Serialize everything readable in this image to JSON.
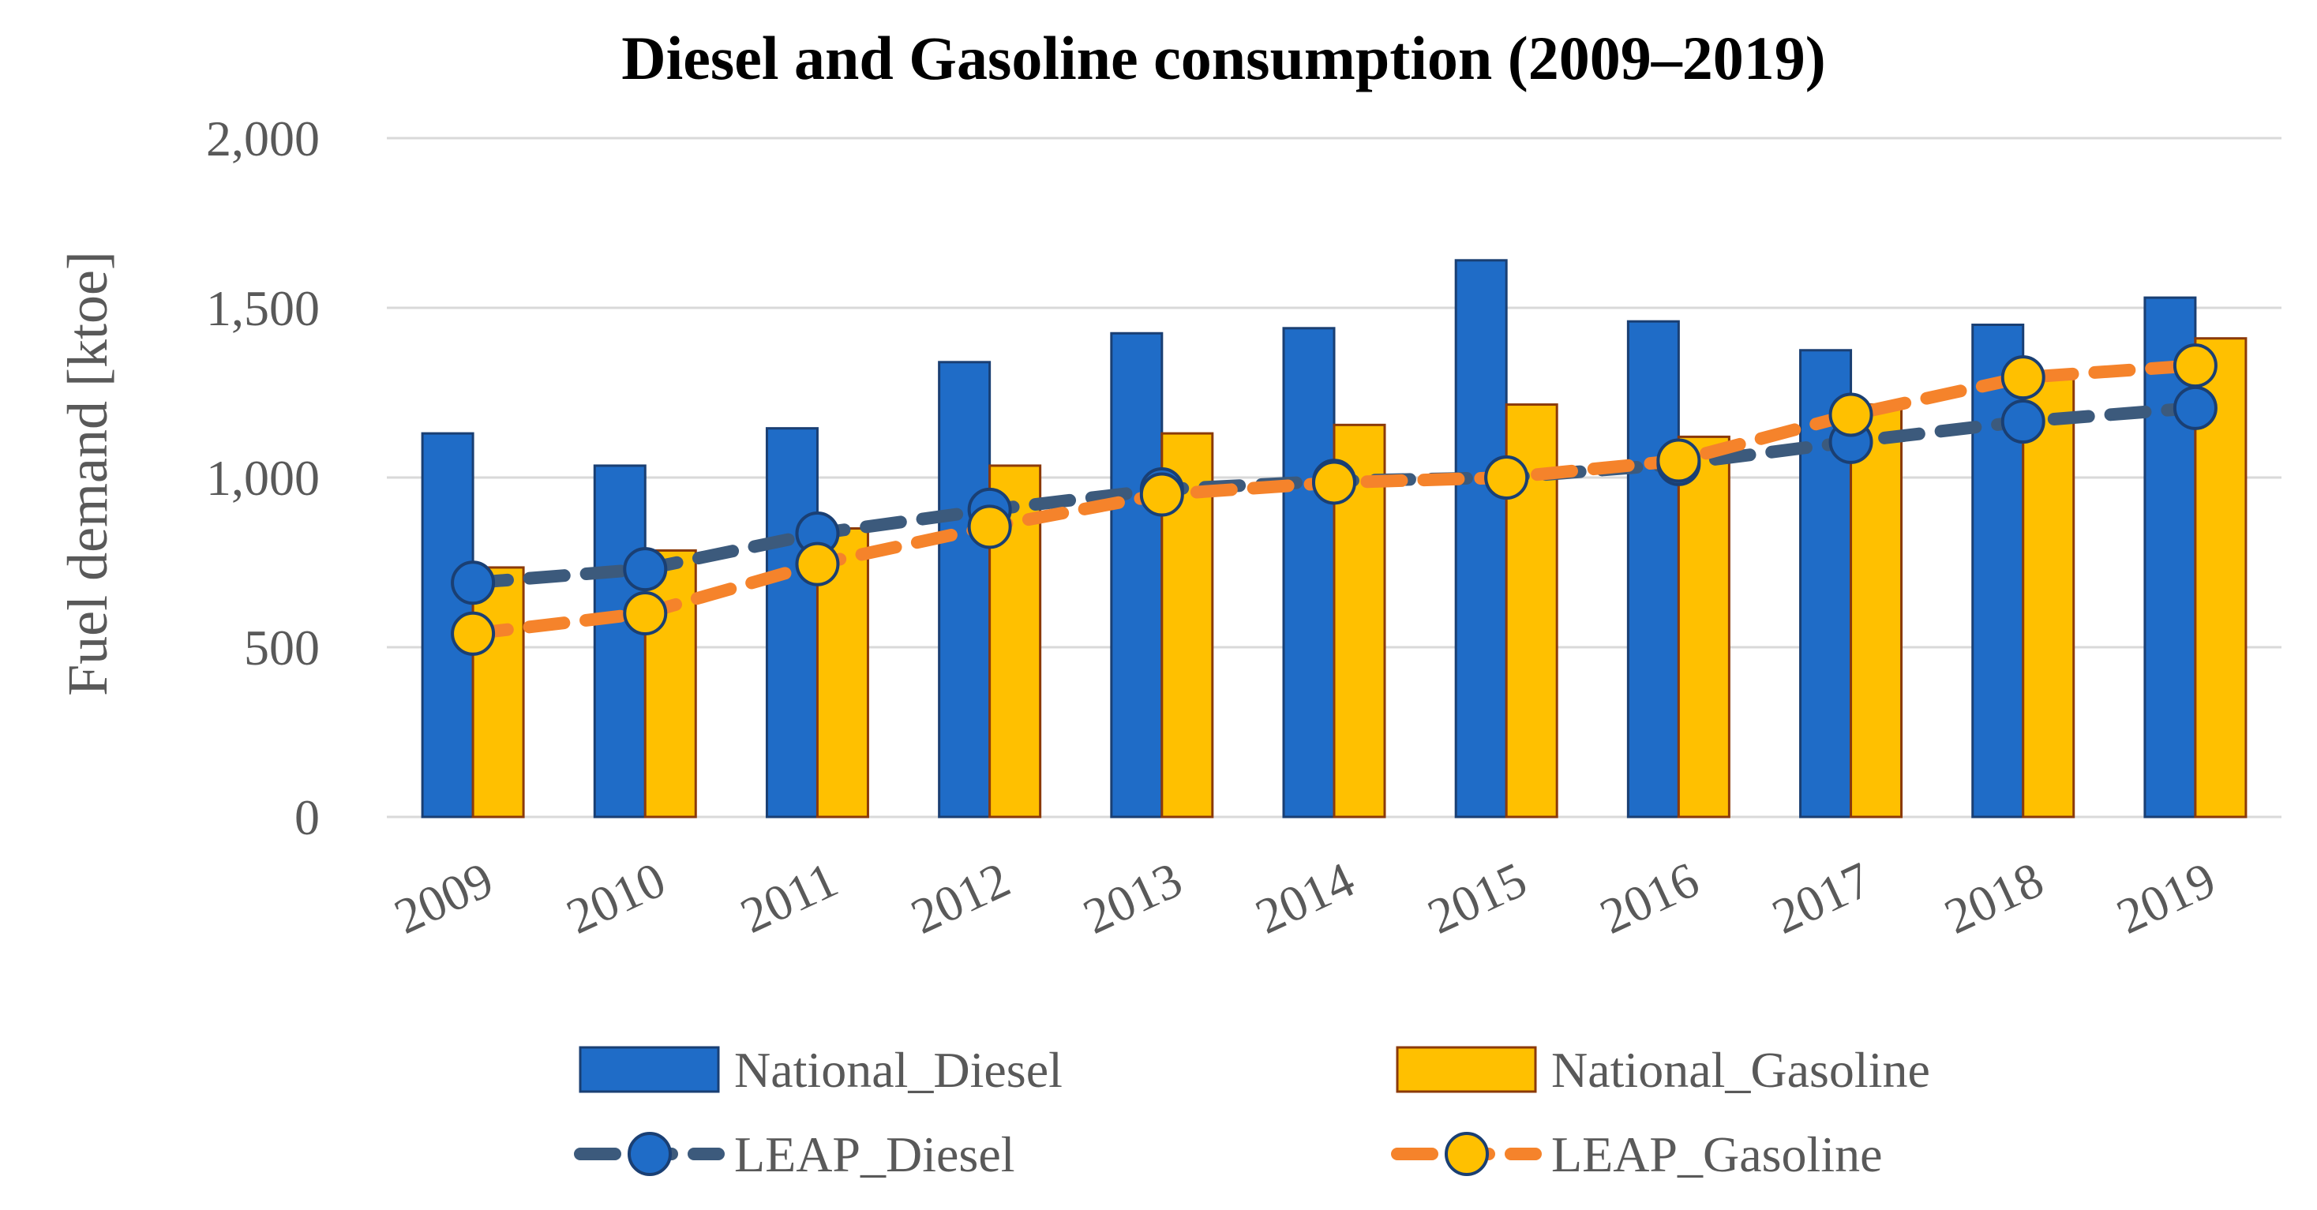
{
  "chart_data": {
    "type": "bar",
    "title": "Diesel and Gasoline consumption (2009–2019)",
    "xlabel": "",
    "ylabel": "Fuel demand [ktoe]",
    "ylim": [
      0,
      2000
    ],
    "yticks": [
      0,
      500,
      1000,
      1500,
      2000
    ],
    "ytick_labels": [
      "0",
      "500",
      "1,000",
      "1,500",
      "2,000"
    ],
    "grid": true,
    "legend_position": "bottom",
    "categories": [
      "2009",
      "2010",
      "2011",
      "2012",
      "2013",
      "2014",
      "2015",
      "2016",
      "2017",
      "2018",
      "2019"
    ],
    "series": [
      {
        "name": "National_Diesel",
        "kind": "bar",
        "color": "#1f6cc7",
        "edge_color": "#1a3f73",
        "values": [
          1130,
          1035,
          1145,
          1340,
          1425,
          1440,
          1640,
          1460,
          1375,
          1450,
          1530
        ]
      },
      {
        "name": "National_Gasoline",
        "kind": "bar",
        "color": "#ffc000",
        "edge_color": "#8b3a0a",
        "values": [
          735,
          785,
          850,
          1035,
          1130,
          1155,
          1215,
          1120,
          1215,
          1310,
          1410
        ]
      },
      {
        "name": "LEAP_Diesel",
        "kind": "line",
        "style": "dashed",
        "color": "#3c5a7c",
        "marker_color": "#1f6cc7",
        "values": [
          690,
          730,
          835,
          905,
          965,
          990,
          1000,
          1040,
          1105,
          1165,
          1205
        ]
      },
      {
        "name": "LEAP_Gasoline",
        "kind": "line",
        "style": "dashed",
        "color": "#f5832b",
        "marker_color": "#ffc000",
        "values": [
          540,
          600,
          745,
          855,
          950,
          985,
          1000,
          1050,
          1185,
          1295,
          1330
        ]
      }
    ]
  }
}
